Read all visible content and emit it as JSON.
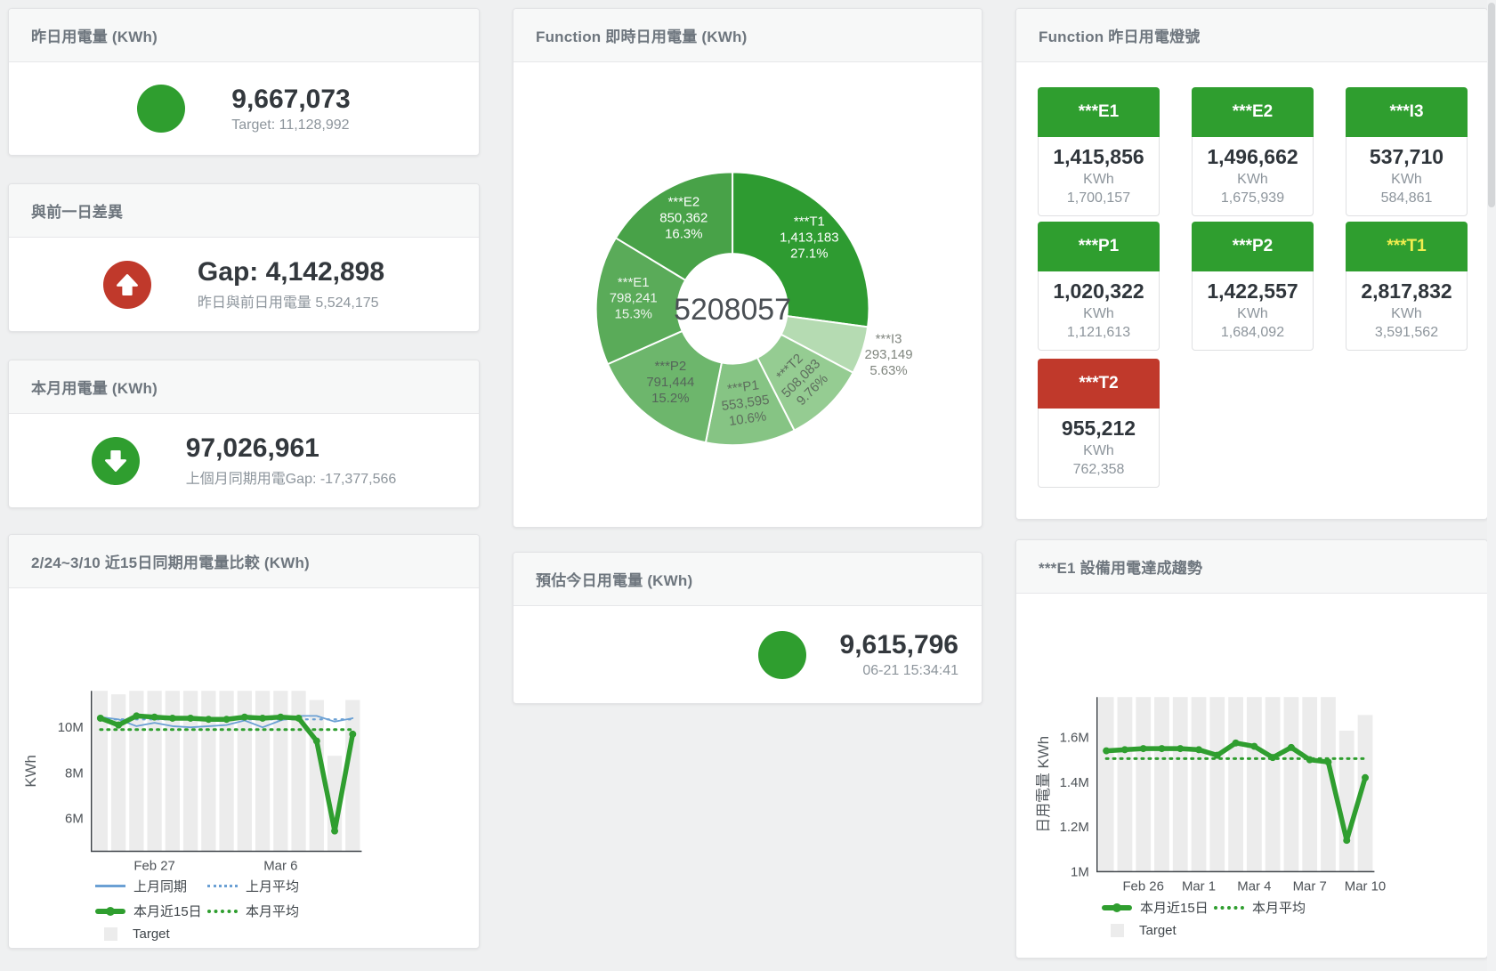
{
  "colors": {
    "green": "#2f9e2f",
    "red": "#c0392b",
    "blue": "#6ba0d4",
    "bar_gray": "#ececec",
    "text_dark": "#33383d",
    "text_gray": "#8d959c",
    "title_gray": "#6e767e"
  },
  "kpi_cards": {
    "yesterday": {
      "title": "昨日用電量 (KWh)",
      "value": "9,667,073",
      "subtitle": "Target: 11,128,992"
    },
    "day_gap": {
      "title": "與前一日差異",
      "value": "Gap: 4,142,898",
      "subtitle": "昨日與前日用電量 5,524,175"
    },
    "month": {
      "title": "本月用電量 (KWh)",
      "value": "97,026,961",
      "subtitle": "上個月同期用電Gap: -17,377,566"
    },
    "estimate": {
      "title": "預估今日用電量 (KWh)",
      "value": "9,615,796",
      "subtitle": "06-21 15:34:41"
    }
  },
  "donut_card": {
    "title": "Function 即時日用電量 (KWh)"
  },
  "lights_card": {
    "title": "Function 昨日用電燈號",
    "tiles": [
      {
        "label": "***E1",
        "value": "1,415,856",
        "unit": "KWh",
        "target": "1,700,157",
        "header_color": "#2f9e2f",
        "label_color": "#ffffff"
      },
      {
        "label": "***E2",
        "value": "1,496,662",
        "unit": "KWh",
        "target": "1,675,939",
        "header_color": "#2f9e2f",
        "label_color": "#ffffff"
      },
      {
        "label": "***I3",
        "value": "537,710",
        "unit": "KWh",
        "target": "584,861",
        "header_color": "#2f9e2f",
        "label_color": "#ffffff"
      },
      {
        "label": "***P1",
        "value": "1,020,322",
        "unit": "KWh",
        "target": "1,121,613",
        "header_color": "#2f9e2f",
        "label_color": "#ffffff"
      },
      {
        "label": "***P2",
        "value": "1,422,557",
        "unit": "KWh",
        "target": "1,684,092",
        "header_color": "#2f9e2f",
        "label_color": "#ffffff"
      },
      {
        "label": "***T1",
        "value": "2,817,832",
        "unit": "KWh",
        "target": "3,591,562",
        "header_color": "#2f9e2f",
        "label_color": "#f1ee4f"
      },
      {
        "label": "***T2",
        "value": "955,212",
        "unit": "KWh",
        "target": "762,358",
        "header_color": "#c0392b",
        "label_color": "#ffffff"
      }
    ]
  },
  "compare_card": {
    "title": "2/24~3/10 近15日同期用電量比較 (KWh)"
  },
  "trend_card": {
    "title": "***E1 設備用電達成趨勢"
  },
  "chart_data": [
    {
      "id": "function-donut",
      "type": "pie",
      "title": "Function 即時日用電量 (KWh)",
      "center_total": "5208057",
      "unit": "KWh",
      "legend_position": "none",
      "slices": [
        {
          "name": "***T1",
          "value": 1413183,
          "value_label": "1,413,183",
          "pct_label": "27.1%",
          "color": "#2e9b31",
          "label_color": "#ffffff",
          "label_r": 115,
          "rotate": 0,
          "outside": false
        },
        {
          "name": "***I3",
          "value": 293149,
          "value_label": "293,149",
          "pct_label": "5.63%",
          "color": "#b5dbb2",
          "label_color": "#80867f",
          "label_r": 185,
          "rotate": 0,
          "outside": true
        },
        {
          "name": "***T2",
          "value": 508083,
          "value_label": "508,083",
          "pct_label": "9.76%",
          "color": "#95cc92",
          "label_color": "#5d6d5d",
          "label_r": 115,
          "rotate": -45,
          "outside": false
        },
        {
          "name": "***P1",
          "value": 553595,
          "value_label": "553,595",
          "pct_label": "10.6%",
          "color": "#86c484",
          "label_color": "#5d6d5d",
          "label_r": 112,
          "rotate": -8,
          "outside": false
        },
        {
          "name": "***P2",
          "value": 791444,
          "value_label": "791,444",
          "pct_label": "15.2%",
          "color": "#6db66c",
          "label_color": "#55655a",
          "label_r": 112,
          "rotate": 0,
          "outside": false
        },
        {
          "name": "***E1",
          "value": 798241,
          "value_label": "798,241",
          "pct_label": "15.3%",
          "color": "#5aab59",
          "label_color": "#eef5ee",
          "label_r": 112,
          "rotate": 0,
          "outside": false
        },
        {
          "name": "***E2",
          "value": 850362,
          "value_label": "850,362",
          "pct_label": "16.3%",
          "color": "#48a248",
          "label_color": "#ffffff",
          "label_r": 112,
          "rotate": 0,
          "outside": false
        }
      ]
    },
    {
      "id": "compare-15d",
      "type": "line",
      "title": "2/24~3/10 近15日同期用電量比較 (KWh)",
      "ylabel": "KWh",
      "ylim": [
        4560000,
        11600000
      ],
      "n": 15,
      "grid": false,
      "legend_position": "bottom-left",
      "yticks": [
        {
          "v": 6000000,
          "label": "6M"
        },
        {
          "v": 8000000,
          "label": "8M"
        },
        {
          "v": 10000000,
          "label": "10M"
        }
      ],
      "xticks": [
        {
          "i": 3,
          "label": "Feb 27"
        },
        {
          "i": 10,
          "label": "Mar 6"
        }
      ],
      "target_bars": [
        11600000,
        11450000,
        11600000,
        11600000,
        11600000,
        11600000,
        11600000,
        11600000,
        11600000,
        11600000,
        11600000,
        11600000,
        11200000,
        8750000,
        11200000
      ],
      "series": [
        {
          "name": "上月同期",
          "style": "solid",
          "color": "#6ba0d4",
          "width": 1.8,
          "markers": false,
          "values": [
            10450000,
            10350000,
            10050000,
            10200000,
            10050000,
            10000000,
            10050000,
            10100000,
            10300000,
            10000000,
            10300000,
            10500000,
            10500000,
            10250000,
            10400000
          ]
        },
        {
          "name": "上月平均",
          "style": "dotted",
          "color": "#6ba0d4",
          "width": 2.2,
          "markers": false,
          "const": 10350000
        },
        {
          "name": "本月近15日",
          "style": "thick",
          "color": "#2f9e2f",
          "width": 5.5,
          "markers": true,
          "values": [
            10400000,
            10100000,
            10500000,
            10450000,
            10400000,
            10400000,
            10350000,
            10350000,
            10450000,
            10400000,
            10450000,
            10400000,
            9400000,
            5450000,
            9700000
          ]
        },
        {
          "name": "本月平均",
          "style": "dotted",
          "color": "#2f9e2f",
          "width": 3,
          "markers": false,
          "const": 9900000
        }
      ],
      "legend": [
        {
          "label": "上月同期",
          "sample": "solid",
          "color": "#6ba0d4"
        },
        {
          "label": "上月平均",
          "sample": "dotted",
          "color": "#6ba0d4"
        },
        {
          "label": "本月近15日",
          "sample": "thick",
          "color": "#2f9e2f"
        },
        {
          "label": "本月平均",
          "sample": "dotted-bold",
          "color": "#2f9e2f"
        },
        {
          "label": "Target",
          "sample": "box",
          "color": "#ececec"
        }
      ],
      "legend_rows": [
        [
          0,
          1
        ],
        [
          2,
          3
        ],
        [
          4
        ]
      ]
    },
    {
      "id": "e1-trend",
      "type": "line",
      "title": "***E1 設備用電達成趨勢",
      "ylabel": "日用電量 KWh",
      "ylim": [
        1000000,
        1780000
      ],
      "n": 15,
      "grid": false,
      "legend_position": "bottom-left",
      "yticks": [
        {
          "v": 1000000,
          "label": "1M"
        },
        {
          "v": 1200000,
          "label": "1.2M"
        },
        {
          "v": 1400000,
          "label": "1.4M"
        },
        {
          "v": 1600000,
          "label": "1.6M"
        }
      ],
      "xticks": [
        {
          "i": 2,
          "label": "Feb 26"
        },
        {
          "i": 5,
          "label": "Mar 1"
        },
        {
          "i": 8,
          "label": "Mar 4"
        },
        {
          "i": 11,
          "label": "Mar 7"
        },
        {
          "i": 14,
          "label": "Mar 10"
        }
      ],
      "target_bars": [
        1780000,
        1780000,
        1780000,
        1780000,
        1780000,
        1780000,
        1780000,
        1780000,
        1780000,
        1780000,
        1780000,
        1780000,
        1780000,
        1630000,
        1700000
      ],
      "series": [
        {
          "name": "本月近15日",
          "style": "thick",
          "color": "#2f9e2f",
          "width": 5.5,
          "markers": true,
          "values": [
            1540000,
            1545000,
            1550000,
            1550000,
            1550000,
            1545000,
            1520000,
            1575000,
            1560000,
            1510000,
            1555000,
            1500000,
            1490000,
            1140000,
            1420000
          ]
        },
        {
          "name": "本月平均",
          "style": "dotted",
          "color": "#2f9e2f",
          "width": 3,
          "markers": false,
          "const": 1505000
        }
      ],
      "legend": [
        {
          "label": "本月近15日",
          "sample": "thick",
          "color": "#2f9e2f"
        },
        {
          "label": "本月平均",
          "sample": "dotted-bold",
          "color": "#2f9e2f"
        },
        {
          "label": "Target",
          "sample": "box",
          "color": "#ececec"
        }
      ],
      "legend_rows": [
        [
          0,
          1
        ],
        [
          2
        ]
      ]
    }
  ]
}
